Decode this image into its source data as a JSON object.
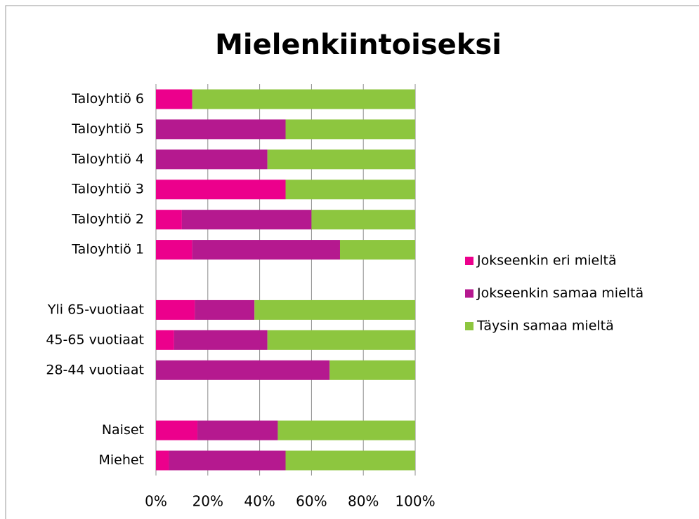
{
  "chart_data": {
    "type": "stacked_barh",
    "title": "Mielenkiintoiseksi",
    "categories": [
      "Taloyhtiö 6",
      "Taloyhtiö 5",
      "Taloyhtiö 4",
      "Taloyhtiö 3",
      "Taloyhtiö 2",
      "Taloyhtiö 1",
      null,
      "Yli 65-vuotiaat",
      "45-65 vuotiaat",
      "28-44 vuotiaat",
      null,
      "Naiset",
      "Miehet"
    ],
    "series": [
      {
        "name": "Jokseenkin eri mieltä",
        "color": "#ec008c",
        "values": [
          14,
          0,
          0,
          50,
          10,
          14,
          null,
          15,
          7,
          0,
          null,
          16,
          5
        ]
      },
      {
        "name": "Jokseenkin samaa mieltä",
        "color": "#b5198f",
        "values": [
          0,
          50,
          43,
          0,
          50,
          57,
          null,
          23,
          36,
          67,
          null,
          31,
          45
        ]
      },
      {
        "name": "Täysin samaa mieltä",
        "color": "#8dc63f",
        "values": [
          86,
          50,
          57,
          50,
          40,
          29,
          null,
          62,
          57,
          33,
          null,
          53,
          50
        ]
      }
    ],
    "xlim": [
      0,
      100
    ],
    "xticks": [
      {
        "value": 0,
        "label": "0%"
      },
      {
        "value": 20,
        "label": "20%"
      },
      {
        "value": 40,
        "label": "40%"
      },
      {
        "value": 60,
        "label": "60%"
      },
      {
        "value": 80,
        "label": "80%"
      },
      {
        "value": 100,
        "label": "100%"
      }
    ],
    "grid": true,
    "legend": "right"
  }
}
